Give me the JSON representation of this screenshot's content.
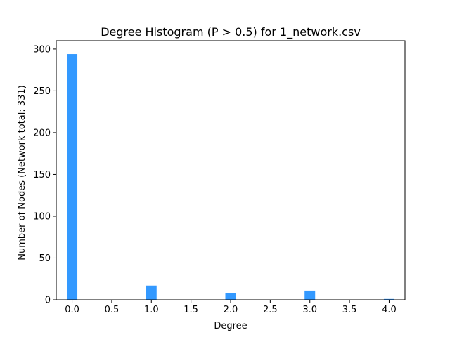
{
  "chart_data": {
    "type": "bar",
    "title": "Degree Histogram (P > 0.5) for 1_network.csv",
    "xlabel": "Degree",
    "ylabel": "Number of Nodes (Network total: 331)",
    "bar_color": "#3399ff",
    "x": [
      0,
      1,
      2,
      3,
      4
    ],
    "values": [
      294,
      17,
      8,
      11,
      1
    ],
    "bar_width": 0.133,
    "xlim": [
      -0.2,
      4.2
    ],
    "ylim": [
      0,
      310
    ],
    "xticks": [
      0,
      0.5,
      1,
      1.5,
      2,
      2.5,
      3,
      3.5,
      4
    ],
    "xtick_labels": [
      "0.0",
      "0.5",
      "1.0",
      "1.5",
      "2.0",
      "2.5",
      "3.0",
      "3.5",
      "4.0"
    ],
    "yticks": [
      0,
      50,
      100,
      150,
      200,
      250,
      300
    ],
    "ytick_labels": [
      "0",
      "50",
      "100",
      "150",
      "200",
      "250",
      "300"
    ],
    "grid": false,
    "legend": false
  }
}
